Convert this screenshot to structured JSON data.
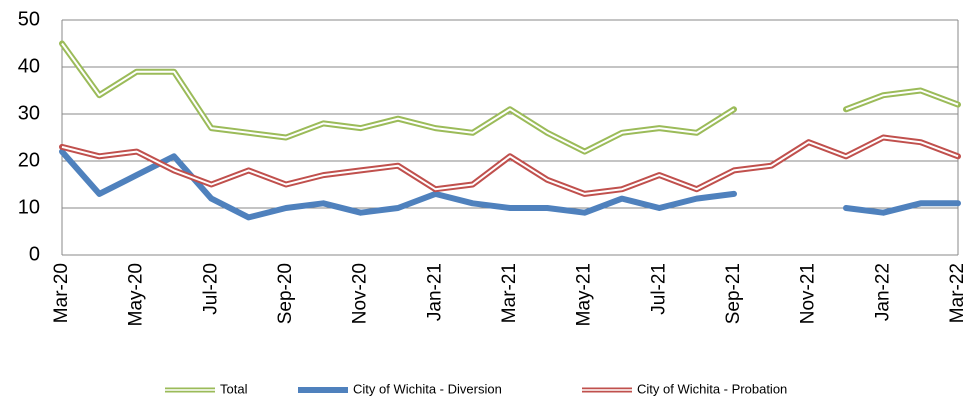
{
  "chart_data": {
    "type": "line",
    "categories": [
      "Mar-20",
      null,
      "May-20",
      null,
      "Jul-20",
      null,
      "Sep-20",
      null,
      "Nov-20",
      null,
      "Jan-21",
      null,
      "Mar-21",
      null,
      "May-21",
      null,
      "Jul-21",
      null,
      "Sep-21",
      null,
      "Nov-21",
      null,
      "Jan-22",
      null,
      "Mar-22"
    ],
    "series": [
      {
        "name": "Total",
        "color": "#9bbb59",
        "style": "double",
        "values": [
          45,
          34,
          39,
          39,
          27,
          26,
          25,
          28,
          27,
          29,
          27,
          26,
          31,
          26,
          22,
          26,
          27,
          26,
          31,
          null,
          null,
          31,
          34,
          35,
          32
        ]
      },
      {
        "name": "City of Wichita - Diversion",
        "color": "#4f81bd",
        "style": "solid",
        "values": [
          22,
          13,
          17,
          21,
          12,
          8,
          10,
          11,
          9,
          10,
          13,
          11,
          10,
          10,
          9,
          12,
          10,
          12,
          13,
          null,
          null,
          10,
          9,
          11,
          11
        ]
      },
      {
        "name": "City of Wichita - Probation",
        "color": "#c0504d",
        "style": "double",
        "values": [
          23,
          21,
          22,
          18,
          15,
          18,
          15,
          17,
          18,
          19,
          14,
          15,
          21,
          16,
          13,
          14,
          17,
          14,
          18,
          19,
          24,
          21,
          25,
          24,
          21
        ]
      }
    ],
    "ylim": [
      0,
      50
    ],
    "yticks": [
      0,
      10,
      20,
      30,
      40,
      50
    ],
    "grid": true,
    "legend": "bottom"
  }
}
